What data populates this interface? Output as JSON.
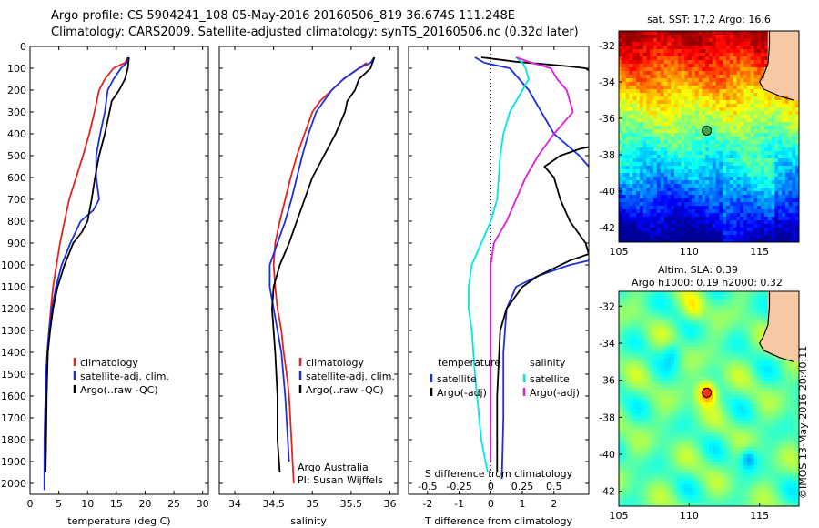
{
  "header": {
    "line1": "Argo profile: CS 5904241_108 05-May-2016 20160506_819 36.674S 111.248E",
    "line2": "Climatology: CARS2009. Satellite-adjusted climatology: synTS_20160506.nc (0.32d later)"
  },
  "credit": "©IMOS 13-May-2016 20:40:11",
  "colors": {
    "climatology": "#e8201e",
    "satellite": "#1a2fe0",
    "argo": "#000000",
    "sat_salinity": "#00e6e6",
    "argo_salinity": "#e01ee0",
    "land": "#f6c8a4"
  },
  "chart_data": [
    {
      "id": "temperature",
      "type": "line",
      "xlabel": "temperature (deg C)",
      "ylabel": "",
      "xlim": [
        0,
        31
      ],
      "ylim": [
        2050,
        0
      ],
      "y_reversed": true,
      "xticks": [
        0,
        5,
        10,
        15,
        20,
        25,
        30
      ],
      "yticks": [
        0,
        100,
        200,
        300,
        400,
        500,
        600,
        700,
        800,
        900,
        1000,
        1100,
        1200,
        1300,
        1400,
        1500,
        1600,
        1700,
        1800,
        1900,
        2000
      ],
      "legend": [
        "climatology",
        "satellite-adj. clim.",
        "Argo(..raw -QC)"
      ],
      "series": [
        {
          "name": "climatology",
          "x": [
            17.0,
            16.5,
            14.5,
            13.0,
            12.0,
            11.2,
            10.3,
            9.2,
            8.0,
            6.8,
            6.0,
            5.2,
            4.6,
            4.0,
            3.6,
            3.3,
            3.0,
            2.8,
            2.7,
            2.6,
            2.5,
            2.5
          ],
          "y": [
            50,
            75,
            100,
            150,
            200,
            300,
            400,
            500,
            600,
            700,
            800,
            900,
            1000,
            1100,
            1200,
            1300,
            1400,
            1500,
            1600,
            1700,
            1800,
            2030
          ]
        },
        {
          "name": "satellite-adj. clim.",
          "x": [
            17.0,
            16.8,
            15.8,
            14.5,
            13.5,
            13.0,
            12.2,
            11.5,
            11.5,
            12.0,
            11.0,
            8.8,
            7.0,
            5.5,
            4.5,
            3.8,
            3.3,
            3.0,
            2.8,
            2.6,
            2.5,
            2.5
          ],
          "y": [
            50,
            75,
            100,
            150,
            200,
            300,
            400,
            500,
            600,
            700,
            750,
            800,
            900,
            1000,
            1100,
            1200,
            1300,
            1400,
            1500,
            1700,
            1900,
            2030
          ]
        },
        {
          "name": "Argo(..raw -QC)",
          "x": [
            17.2,
            17.0,
            16.5,
            15.5,
            14.2,
            13.8,
            13.0,
            12.0,
            11.3,
            10.7,
            10.0,
            9.0,
            7.5,
            6.0,
            4.8,
            4.0,
            3.5,
            3.1,
            2.9,
            2.8,
            2.7
          ],
          "y": [
            50,
            100,
            150,
            200,
            250,
            300,
            400,
            500,
            600,
            700,
            800,
            850,
            900,
            1000,
            1100,
            1200,
            1300,
            1400,
            1600,
            1800,
            1950
          ]
        }
      ]
    },
    {
      "id": "salinity",
      "type": "line",
      "xlabel": "salinity",
      "ylabel": "",
      "xlim": [
        33.8,
        36.1
      ],
      "ylim": [
        2050,
        0
      ],
      "y_reversed": true,
      "xticks": [
        34,
        34.5,
        35,
        35.5,
        36
      ],
      "legend": [
        "climatology",
        "satellite-adj. clim.",
        "Argo(..raw -QC)"
      ],
      "annotation": [
        "Argo Australia",
        "PI: Susan Wijffels"
      ],
      "series": [
        {
          "name": "climatology",
          "x": [
            35.7,
            35.6,
            35.4,
            35.25,
            35.1,
            35.0,
            34.9,
            34.8,
            34.72,
            34.65,
            34.58,
            34.52,
            34.5,
            34.52,
            34.55,
            34.6,
            34.63,
            34.67,
            34.7,
            34.73,
            34.76
          ],
          "y": [
            75,
            100,
            150,
            200,
            250,
            300,
            400,
            500,
            600,
            700,
            800,
            900,
            1000,
            1100,
            1200,
            1300,
            1400,
            1500,
            1600,
            1800,
            2000
          ]
        },
        {
          "name": "satellite-adj. clim.",
          "x": [
            35.8,
            35.75,
            35.6,
            35.4,
            35.25,
            35.15,
            35.05,
            34.95,
            34.87,
            34.8,
            34.73,
            34.65,
            34.55,
            34.45,
            34.45,
            34.5,
            34.55,
            34.6,
            34.65,
            34.7
          ],
          "y": [
            50,
            75,
            100,
            150,
            200,
            250,
            300,
            400,
            500,
            600,
            700,
            800,
            900,
            1000,
            1100,
            1200,
            1300,
            1400,
            1600,
            1900
          ]
        },
        {
          "name": "Argo(..raw -QC)",
          "x": [
            35.8,
            35.75,
            35.6,
            35.55,
            35.45,
            35.42,
            35.3,
            35.15,
            35.0,
            34.9,
            34.8,
            34.7,
            34.58,
            34.5,
            34.48,
            34.52,
            34.55,
            34.55,
            34.58
          ],
          "y": [
            50,
            100,
            150,
            200,
            250,
            300,
            400,
            500,
            600,
            700,
            800,
            900,
            1000,
            1100,
            1200,
            1400,
            1600,
            1800,
            1950
          ]
        }
      ]
    },
    {
      "id": "difference",
      "type": "line",
      "xlabel": "T difference from climatology",
      "xlabel_top": "S difference from climatology",
      "xlim": [
        -2.6,
        3.1
      ],
      "ylim": [
        2050,
        0
      ],
      "y_reversed": true,
      "xticks": [
        -2,
        -1,
        0,
        1,
        2
      ],
      "xticks_s_labels": [
        "-0.5",
        "-0.25",
        "0",
        "0.25",
        "0.5"
      ],
      "legend_temperature_title": "temperature",
      "legend_salinity_title": "salinity",
      "legend": [
        "satellite",
        "Argo(-adj)",
        "satellite",
        "Argo(-adj)"
      ],
      "series": [
        {
          "name": "satellite",
          "group": "temperature",
          "x": [
            -0.5,
            -0.2,
            0.6,
            1.2,
            2.0,
            2.8,
            3.1
          ],
          "y": [
            50,
            75,
            100,
            200,
            400,
            500,
            550
          ]
        },
        {
          "name": "satellite",
          "group": "temperature",
          "x": [
            3.1,
            2.5,
            1.5,
            0.8,
            0.5,
            0.4,
            0.4,
            0.35
          ],
          "y": [
            980,
            1000,
            1050,
            1100,
            1200,
            1400,
            1700,
            1980
          ]
        },
        {
          "name": "Argo(-adj)",
          "group": "temperature",
          "x": [
            -0.3,
            0.8,
            1.6,
            2.4,
            3.0,
            3.1
          ],
          "y": [
            50,
            70,
            80,
            90,
            100,
            110
          ]
        },
        {
          "name": "Argo(-adj)",
          "group": "temperature",
          "x": [
            3.1,
            2.8,
            2.2,
            1.7,
            2.0,
            2.2,
            2.5,
            3.0,
            3.1
          ],
          "y": [
            460,
            470,
            500,
            550,
            600,
            700,
            800,
            900,
            950
          ]
        },
        {
          "name": "Argo(-adj)",
          "group": "temperature",
          "x": [
            3.1,
            2.5,
            1.5,
            1.0,
            0.5,
            0.3,
            0.2,
            0.2
          ],
          "y": [
            950,
            980,
            1050,
            1100,
            1200,
            1300,
            1600,
            1950
          ]
        },
        {
          "name": "satellite",
          "group": "salinity",
          "x": [
            0.8,
            1.0,
            1.1,
            1.2,
            1.0,
            0.6,
            0.4,
            0.3,
            0.25,
            0.2,
            0.0,
            -0.3,
            -0.6,
            -0.7,
            -0.7,
            -0.6,
            -0.5,
            -0.3,
            -0.1
          ],
          "y": [
            50,
            75,
            100,
            150,
            200,
            300,
            400,
            500,
            600,
            700,
            800,
            900,
            1000,
            1100,
            1200,
            1300,
            1500,
            1800,
            1950
          ]
        },
        {
          "name": "Argo(-adj)",
          "group": "salinity",
          "x": [
            0.8,
            1.3,
            1.9,
            2.1,
            2.4,
            2.6,
            2.0,
            1.5,
            1.1,
            0.8,
            0.5,
            0.1,
            0.0,
            0.0,
            0.0,
            0.0,
            0.0
          ],
          "y": [
            50,
            75,
            100,
            150,
            200,
            300,
            400,
            500,
            600,
            700,
            800,
            900,
            1000,
            1100,
            1200,
            1500,
            1900
          ]
        }
      ]
    },
    {
      "id": "sst-map",
      "type": "heatmap",
      "title": "sat. SST: 17.2 Argo: 16.6",
      "xlim": [
        105,
        117.8
      ],
      "ylim": [
        -42.8,
        -31.2
      ],
      "xticks": [
        105,
        110,
        115
      ],
      "yticks": [
        -32,
        -34,
        -36,
        -38,
        -40,
        -42
      ],
      "marker": {
        "lon": 111.248,
        "lat": -36.674
      }
    },
    {
      "id": "sla-map",
      "type": "heatmap",
      "title_line1": "Altim. SLA: 0.39",
      "title_line2": "Argo h1000: 0.19 h2000: 0.32",
      "xlim": [
        105,
        117.8
      ],
      "ylim": [
        -42.8,
        -31.2
      ],
      "xticks": [
        105,
        110,
        115
      ],
      "yticks": [
        -32,
        -34,
        -36,
        -38,
        -40,
        -42
      ],
      "marker": {
        "lon": 111.248,
        "lat": -36.674
      }
    }
  ]
}
